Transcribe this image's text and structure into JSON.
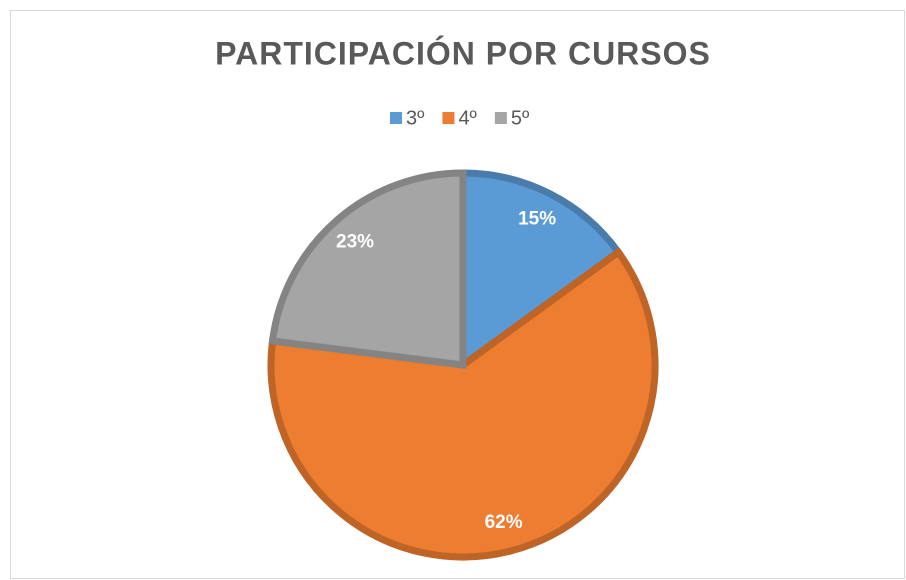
{
  "chart_data": {
    "type": "pie",
    "title": "PARTICIPACIÓN POR CURSOS",
    "categories": [
      "3º",
      "4º",
      "5º"
    ],
    "values": [
      15,
      62,
      23
    ],
    "value_labels": [
      "15%",
      "62%",
      "23%"
    ],
    "colors": [
      "#5b9bd5",
      "#ed7d31",
      "#a5a5a5"
    ],
    "legend": "top"
  }
}
